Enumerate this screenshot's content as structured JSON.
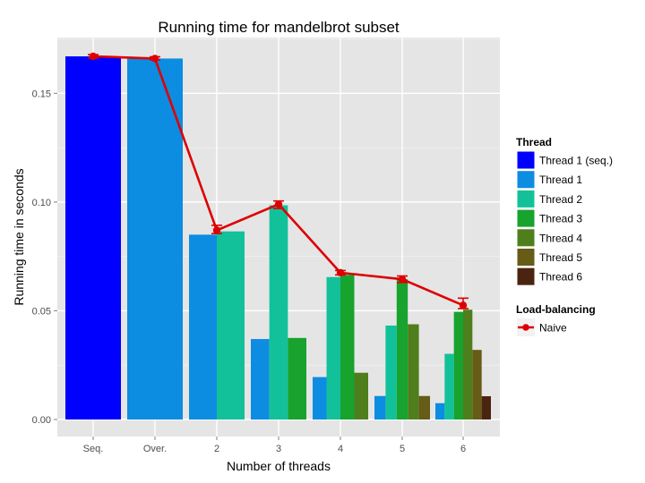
{
  "chart_data": {
    "type": "bar",
    "title": "Running time for mandelbrot subset",
    "xlabel": "Number of threads",
    "ylabel": "Running time in seconds",
    "categories": [
      "Seq.",
      "Over.",
      "2",
      "3",
      "4",
      "5",
      "6"
    ],
    "ylim": [
      0,
      0.175
    ],
    "yticks": [
      0.0,
      0.05,
      0.1,
      0.15
    ],
    "ytick_labels": [
      "0.00",
      "0.05",
      "0.10",
      "0.15"
    ],
    "grid": true,
    "legend_position": "right",
    "bar_legend": {
      "title": "Thread",
      "entries": [
        {
          "name": "Thread 1 (seq.)",
          "color": "#0000ff"
        },
        {
          "name": "Thread 1",
          "color": "#0c8de1"
        },
        {
          "name": "Thread 2",
          "color": "#12c19a"
        },
        {
          "name": "Thread 3",
          "color": "#17a32e"
        },
        {
          "name": "Thread 4",
          "color": "#4f7f1d"
        },
        {
          "name": "Thread 5",
          "color": "#665b17"
        },
        {
          "name": "Thread 6",
          "color": "#4a2410"
        }
      ]
    },
    "bars": [
      {
        "category": "Seq.",
        "values": [
          {
            "series": "Thread 1 (seq.)",
            "value": 0.167
          }
        ]
      },
      {
        "category": "Over.",
        "values": [
          {
            "series": "Thread 1",
            "value": 0.166
          }
        ]
      },
      {
        "category": "2",
        "values": [
          {
            "series": "Thread 1",
            "value": 0.085
          },
          {
            "series": "Thread 2",
            "value": 0.0865
          }
        ]
      },
      {
        "category": "3",
        "values": [
          {
            "series": "Thread 1",
            "value": 0.037
          },
          {
            "series": "Thread 2",
            "value": 0.0985
          },
          {
            "series": "Thread 3",
            "value": 0.0375
          }
        ]
      },
      {
        "category": "4",
        "values": [
          {
            "series": "Thread 1",
            "value": 0.0195
          },
          {
            "series": "Thread 2",
            "value": 0.0655
          },
          {
            "series": "Thread 3",
            "value": 0.0665
          },
          {
            "series": "Thread 4",
            "value": 0.0215
          }
        ]
      },
      {
        "category": "5",
        "values": [
          {
            "series": "Thread 1",
            "value": 0.0108
          },
          {
            "series": "Thread 2",
            "value": 0.0432
          },
          {
            "series": "Thread 3",
            "value": 0.0645
          },
          {
            "series": "Thread 4",
            "value": 0.0438
          },
          {
            "series": "Thread 5",
            "value": 0.0108
          }
        ]
      },
      {
        "category": "6",
        "values": [
          {
            "series": "Thread 1",
            "value": 0.0075
          },
          {
            "series": "Thread 2",
            "value": 0.0302
          },
          {
            "series": "Thread 3",
            "value": 0.0495
          },
          {
            "series": "Thread 4",
            "value": 0.0505
          },
          {
            "series": "Thread 5",
            "value": 0.032
          },
          {
            "series": "Thread 6",
            "value": 0.0107
          }
        ]
      }
    ],
    "line_legend": {
      "title": "Load-balancing",
      "entries": [
        {
          "name": "Naive",
          "color": "#dd0000"
        }
      ]
    },
    "line_series": {
      "name": "Naive",
      "color": "#dd0000",
      "values": [
        0.167,
        0.166,
        0.087,
        0.099,
        0.0675,
        0.0645,
        0.0525
      ],
      "error_low": [
        0.1662,
        0.1654,
        0.0855,
        0.097,
        0.0665,
        0.063,
        0.051
      ],
      "error_high": [
        0.1678,
        0.1668,
        0.0893,
        0.1005,
        0.0685,
        0.066,
        0.0558
      ]
    }
  }
}
